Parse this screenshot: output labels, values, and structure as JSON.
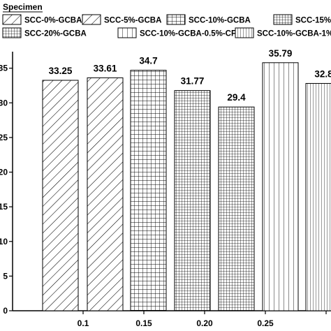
{
  "chart_data": {
    "type": "bar",
    "legend": {
      "title": "Specimen",
      "placement": "top"
    },
    "categories": [
      "0.1",
      "0.15",
      "0.20",
      "0.25",
      ""
    ],
    "series": [
      {
        "name": "SCC-0%-GCBA",
        "value": 33.25,
        "value_label": "33.25",
        "pattern": "diag"
      },
      {
        "name": "SCC-5%-GCBA",
        "value": 33.61,
        "value_label": "33.61",
        "pattern": "diag"
      },
      {
        "name": "SCC-10%-GCBA",
        "value": 34.7,
        "value_label": "34.7",
        "pattern": "grid"
      },
      {
        "name": "SCC-15%",
        "value": 31.77,
        "value_label": "31.77",
        "pattern": "grid-dense"
      },
      {
        "name": "SCC-20%-GCBA",
        "value": 29.4,
        "value_label": "29.4",
        "pattern": "grid-dense"
      },
      {
        "name": "SCC-10%-GCBA-0.5%-CF",
        "value": 35.79,
        "value_label": "35.79",
        "pattern": "vlines"
      },
      {
        "name": "SCC-10%-GCBA-1%",
        "value": 32.8,
        "value_label": "32.8",
        "pattern": "vlines-dense"
      }
    ],
    "y_ticks": [
      "0",
      "5",
      "10",
      "15",
      "20",
      "25",
      "30",
      "35"
    ],
    "ylim": [
      0,
      40
    ],
    "grid": false
  }
}
